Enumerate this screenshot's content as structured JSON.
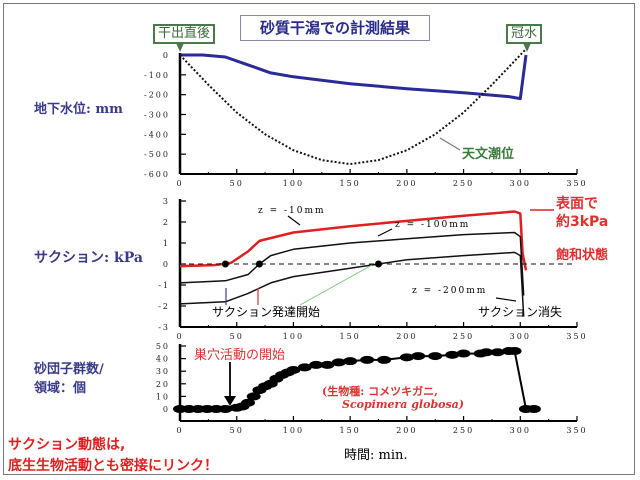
{
  "title": "砂質干潟での計測結果",
  "tags": {
    "left": "干出直後",
    "right": "冠水"
  },
  "panels": {
    "groundwater": {
      "ylabel": "地下水位: mm",
      "tide_label": "天文潮位"
    },
    "suction": {
      "ylabel": "サクション: kPa",
      "z10": "z = -10mm",
      "z100": "z = -100mm",
      "z200": "z = -200mm",
      "surface_note_1": "表面で",
      "surface_note_2": "約3kPa",
      "saturated": "飽和状態",
      "onset": "サクション発達開始",
      "vanish": "サクション消失"
    },
    "burrows": {
      "ylabel_1": "砂団子群数/",
      "ylabel_2": "領域：個",
      "start": "巣穴活動の開始",
      "species_1": "(生物種: コメツキガニ,",
      "species_2": "Scopimera globosa)"
    }
  },
  "xlabel": "時間: min.",
  "conclusion_1": "サクション動態は,",
  "conclusion_2": "底生生物活動とも密接にリンク！",
  "colors": {
    "groundwater": "#2a2a9a",
    "surface": "#e02020",
    "tag": "#4a7a4a",
    "accent_red": "#e03030",
    "label_blue": "#3a3a8a"
  },
  "chart_data": [
    {
      "type": "line",
      "title": "地下水位",
      "ylabel": "地下水位: mm",
      "xlabel": "時間: min.",
      "xlim": [
        0,
        350
      ],
      "ylim": [
        -600,
        0
      ],
      "xticks": [
        0,
        50,
        100,
        150,
        200,
        250,
        300,
        350
      ],
      "yticks": [
        0,
        -100,
        -200,
        -300,
        -400,
        -500,
        -600
      ],
      "series": [
        {
          "name": "地下水位",
          "x": [
            0,
            20,
            40,
            60,
            80,
            100,
            150,
            200,
            250,
            290,
            300,
            305
          ],
          "y": [
            0,
            0,
            -10,
            -50,
            -90,
            -110,
            -145,
            -170,
            -190,
            -210,
            -220,
            0
          ]
        },
        {
          "name": "天文潮位",
          "x": [
            0,
            25,
            50,
            75,
            100,
            125,
            150,
            175,
            200,
            225,
            250,
            275,
            300,
            305
          ],
          "y": [
            0,
            -150,
            -290,
            -400,
            -480,
            -530,
            -550,
            -530,
            -480,
            -400,
            -290,
            -150,
            0,
            30
          ]
        }
      ]
    },
    {
      "type": "line",
      "title": "サクション",
      "ylabel": "サクション: kPa",
      "xlim": [
        0,
        350
      ],
      "ylim": [
        -3,
        3
      ],
      "xticks": [
        0,
        50,
        100,
        150,
        200,
        250,
        300,
        350
      ],
      "yticks": [
        3,
        2,
        1,
        0,
        -1,
        -2,
        -3
      ],
      "series": [
        {
          "name": "z = -10mm",
          "x": [
            0,
            30,
            45,
            60,
            70,
            100,
            150,
            200,
            250,
            295,
            300,
            302,
            305
          ],
          "y": [
            -0.1,
            -0.05,
            0.05,
            0.6,
            1.1,
            1.5,
            1.8,
            2.05,
            2.3,
            2.5,
            2.4,
            0.5,
            -0.3
          ]
        },
        {
          "name": "z = -100mm",
          "x": [
            0,
            40,
            60,
            70,
            80,
            100,
            150,
            200,
            250,
            295,
            300,
            303
          ],
          "y": [
            -0.9,
            -0.8,
            -0.5,
            0.0,
            0.4,
            0.7,
            1.0,
            1.2,
            1.4,
            1.5,
            1.3,
            -1.5
          ]
        },
        {
          "name": "z = -200mm",
          "x": [
            0,
            40,
            60,
            80,
            100,
            150,
            175,
            200,
            250,
            295,
            300,
            303
          ],
          "y": [
            -1.9,
            -1.8,
            -1.4,
            -0.9,
            -0.6,
            -0.2,
            0.0,
            0.2,
            0.4,
            0.55,
            0.4,
            -2.5
          ]
        }
      ]
    },
    {
      "type": "line",
      "title": "砂団子群数",
      "ylabel": "砂団子群数/領域：個",
      "xlim": [
        0,
        350
      ],
      "ylim": [
        0,
        50
      ],
      "xticks": [
        0,
        50,
        100,
        150,
        200,
        250,
        300,
        350
      ],
      "yticks": [
        50,
        40,
        30,
        20,
        10,
        0
      ],
      "series": [
        {
          "name": "砂団子群数",
          "x": [
            0,
            8,
            16,
            24,
            32,
            40,
            50,
            55,
            60,
            65,
            70,
            75,
            80,
            85,
            90,
            95,
            100,
            110,
            120,
            130,
            140,
            150,
            165,
            180,
            200,
            210,
            225,
            240,
            250,
            265,
            270,
            280,
            290,
            295,
            305,
            312
          ],
          "y": [
            0,
            0,
            0,
            0,
            0,
            0,
            1,
            2,
            5,
            10,
            15,
            18,
            20,
            24,
            27,
            29,
            31,
            33,
            35,
            35,
            37,
            38,
            39,
            39,
            41,
            42,
            42,
            43,
            44,
            44,
            45,
            45,
            46,
            46,
            0,
            0
          ]
        }
      ]
    }
  ]
}
